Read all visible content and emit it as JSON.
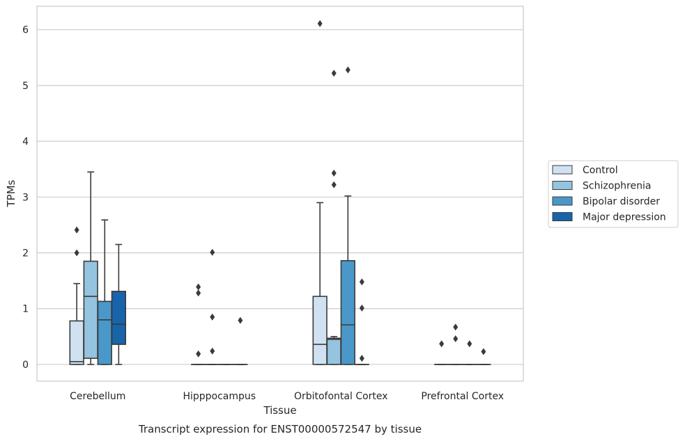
{
  "chart_data": {
    "type": "box",
    "title": "Transcript expression for ENST00000572547 by tissue",
    "xlabel": "Tissue",
    "ylabel": "TPMs",
    "ylim": [
      -0.3,
      6.42
    ],
    "yticks": [
      0,
      1,
      2,
      3,
      4,
      5,
      6
    ],
    "grid": "horizontal",
    "legend_position": "right",
    "categories": [
      "Cerebellum",
      "Hipppocampus",
      "Orbitofontal Cortex",
      "Prefrontal Cortex"
    ],
    "series": [
      {
        "name": "Control",
        "color": "#d0e1f2",
        "boxes": [
          {
            "whislo": 0.0,
            "q1": 0.0,
            "med": 0.05,
            "q3": 0.78,
            "whishi": 1.45,
            "fliers": [
              2.0,
              2.41
            ]
          },
          {
            "whislo": 0.0,
            "q1": 0.0,
            "med": 0.0,
            "q3": 0.0,
            "whishi": 0.0,
            "fliers": [
              0.19,
              1.28,
              1.39
            ]
          },
          {
            "whislo": 0.0,
            "q1": 0.0,
            "med": 0.36,
            "q3": 1.22,
            "whishi": 2.9,
            "fliers": [
              6.11
            ]
          },
          {
            "whislo": 0.0,
            "q1": 0.0,
            "med": 0.0,
            "q3": 0.0,
            "whishi": 0.0,
            "fliers": [
              0.37
            ]
          }
        ]
      },
      {
        "name": "Schizophrenia",
        "color": "#94c4df",
        "boxes": [
          {
            "whislo": 0.0,
            "q1": 0.11,
            "med": 1.22,
            "q3": 1.85,
            "whishi": 3.45,
            "fliers": []
          },
          {
            "whislo": 0.0,
            "q1": 0.0,
            "med": 0.0,
            "q3": 0.0,
            "whishi": 0.0,
            "fliers": [
              0.24,
              0.85,
              2.01
            ]
          },
          {
            "whislo": 0.0,
            "q1": 0.0,
            "med": 0.45,
            "q3": 0.47,
            "whishi": 0.5,
            "fliers": [
              3.22,
              3.43,
              5.22
            ]
          },
          {
            "whislo": 0.0,
            "q1": 0.0,
            "med": 0.0,
            "q3": 0.0,
            "whishi": 0.0,
            "fliers": [
              0.46,
              0.67
            ]
          }
        ]
      },
      {
        "name": "Bipolar disorder",
        "color": "#4a98c9",
        "boxes": [
          {
            "whislo": 0.0,
            "q1": 0.0,
            "med": 0.8,
            "q3": 1.13,
            "whishi": 2.59,
            "fliers": []
          },
          {
            "whislo": 0.0,
            "q1": 0.0,
            "med": 0.0,
            "q3": 0.0,
            "whishi": 0.0,
            "fliers": []
          },
          {
            "whislo": 0.0,
            "q1": 0.0,
            "med": 0.71,
            "q3": 1.86,
            "whishi": 3.02,
            "fliers": [
              5.28
            ]
          },
          {
            "whislo": 0.0,
            "q1": 0.0,
            "med": 0.0,
            "q3": 0.0,
            "whishi": 0.0,
            "fliers": [
              0.37
            ]
          }
        ]
      },
      {
        "name": "Major depression",
        "color": "#1764ab",
        "boxes": [
          {
            "whislo": 0.0,
            "q1": 0.36,
            "med": 0.72,
            "q3": 1.31,
            "whishi": 2.15,
            "fliers": []
          },
          {
            "whislo": 0.0,
            "q1": 0.0,
            "med": 0.0,
            "q3": 0.0,
            "whishi": 0.0,
            "fliers": [
              0.79
            ]
          },
          {
            "whislo": 0.0,
            "q1": 0.0,
            "med": 0.0,
            "q3": 0.0,
            "whishi": 0.0,
            "fliers": [
              0.11,
              1.01,
              1.48
            ]
          },
          {
            "whislo": 0.0,
            "q1": 0.0,
            "med": 0.0,
            "q3": 0.0,
            "whishi": 0.0,
            "fliers": [
              0.23
            ]
          }
        ]
      }
    ]
  }
}
